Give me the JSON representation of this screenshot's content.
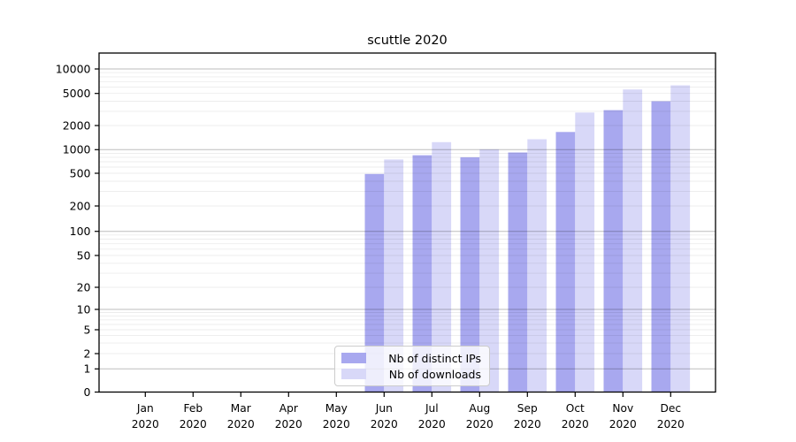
{
  "chart_data": {
    "type": "bar",
    "title": "scuttle 2020",
    "x_months": [
      "Jan",
      "Feb",
      "Mar",
      "Apr",
      "May",
      "Jun",
      "Jul",
      "Aug",
      "Sep",
      "Oct",
      "Nov",
      "Dec"
    ],
    "x_year": "2020",
    "series": [
      {
        "name": "Nb of distinct IPs",
        "color": "#a8a8ef",
        "values": [
          0,
          0,
          0,
          0,
          0,
          490,
          850,
          800,
          920,
          1660,
          3100,
          4000
        ]
      },
      {
        "name": "Nb of downloads",
        "color": "#d8d8f8",
        "values": [
          0,
          0,
          0,
          0,
          0,
          750,
          1240,
          1010,
          1350,
          2900,
          5600,
          6300
        ]
      }
    ],
    "y_ticks": [
      0,
      1,
      2,
      5,
      10,
      20,
      50,
      100,
      200,
      500,
      1000,
      2000,
      5000,
      10000
    ],
    "y_scale": "symlog",
    "ylim": [
      0,
      15000
    ],
    "grid": {
      "horizontal_major": true,
      "horizontal_minor": true,
      "vertical": false
    },
    "legend": {
      "position": "lower center"
    }
  },
  "colors": {
    "spine": "#000000",
    "major_grid": "rgba(0,0,0,0.26)",
    "minor_grid": "rgba(0,0,0,0.075)",
    "text": "#000000",
    "legend_border": "#cccccc",
    "legend_bg": "rgba(255,255,255,0.8)"
  }
}
